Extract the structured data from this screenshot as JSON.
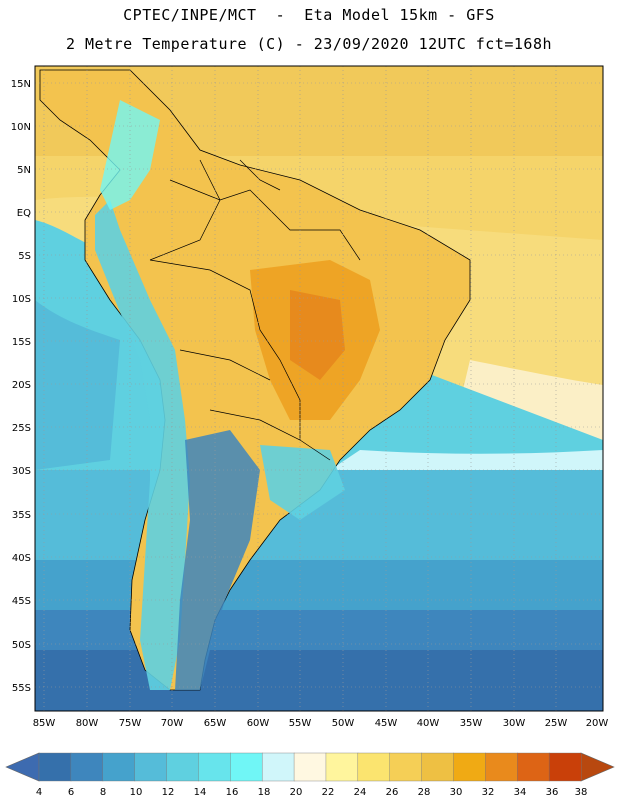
{
  "header": {
    "line1": "CPTEC/INPE/MCT  -  Eta Model 15km - GFS",
    "line2": "2 Metre Temperature (C) - 23/09/2020 12UTC fct=168h"
  },
  "map": {
    "lat_labels": [
      "15N",
      "10N",
      "5N",
      "EQ",
      "5S",
      "10S",
      "15S",
      "20S",
      "25S",
      "30S",
      "35S",
      "40S",
      "45S",
      "50S",
      "55S"
    ],
    "lon_labels": [
      "85W",
      "80W",
      "75W",
      "70W",
      "65W",
      "60W",
      "55W",
      "50W",
      "45W",
      "40W",
      "35W",
      "30W",
      "25W",
      "20W"
    ]
  },
  "colorbar": {
    "ticks": [
      "4",
      "6",
      "8",
      "10",
      "12",
      "14",
      "16",
      "18",
      "20",
      "22",
      "24",
      "26",
      "28",
      "30",
      "32",
      "34",
      "36",
      "38"
    ],
    "colors": [
      "#3570ab",
      "#3e86bd",
      "#45a2cc",
      "#55bcd9",
      "#5fd0e0",
      "#67e4ec",
      "#70f6f6",
      "#d0f6fa",
      "#fff8e1",
      "#fff59d",
      "#fbe46f",
      "#f5cf56",
      "#eec043",
      "#f0aa14",
      "#e98a1c",
      "#dd6415",
      "#c94009"
    ],
    "low_color": "#3d6bb0",
    "high_color": "#b8480f"
  }
}
